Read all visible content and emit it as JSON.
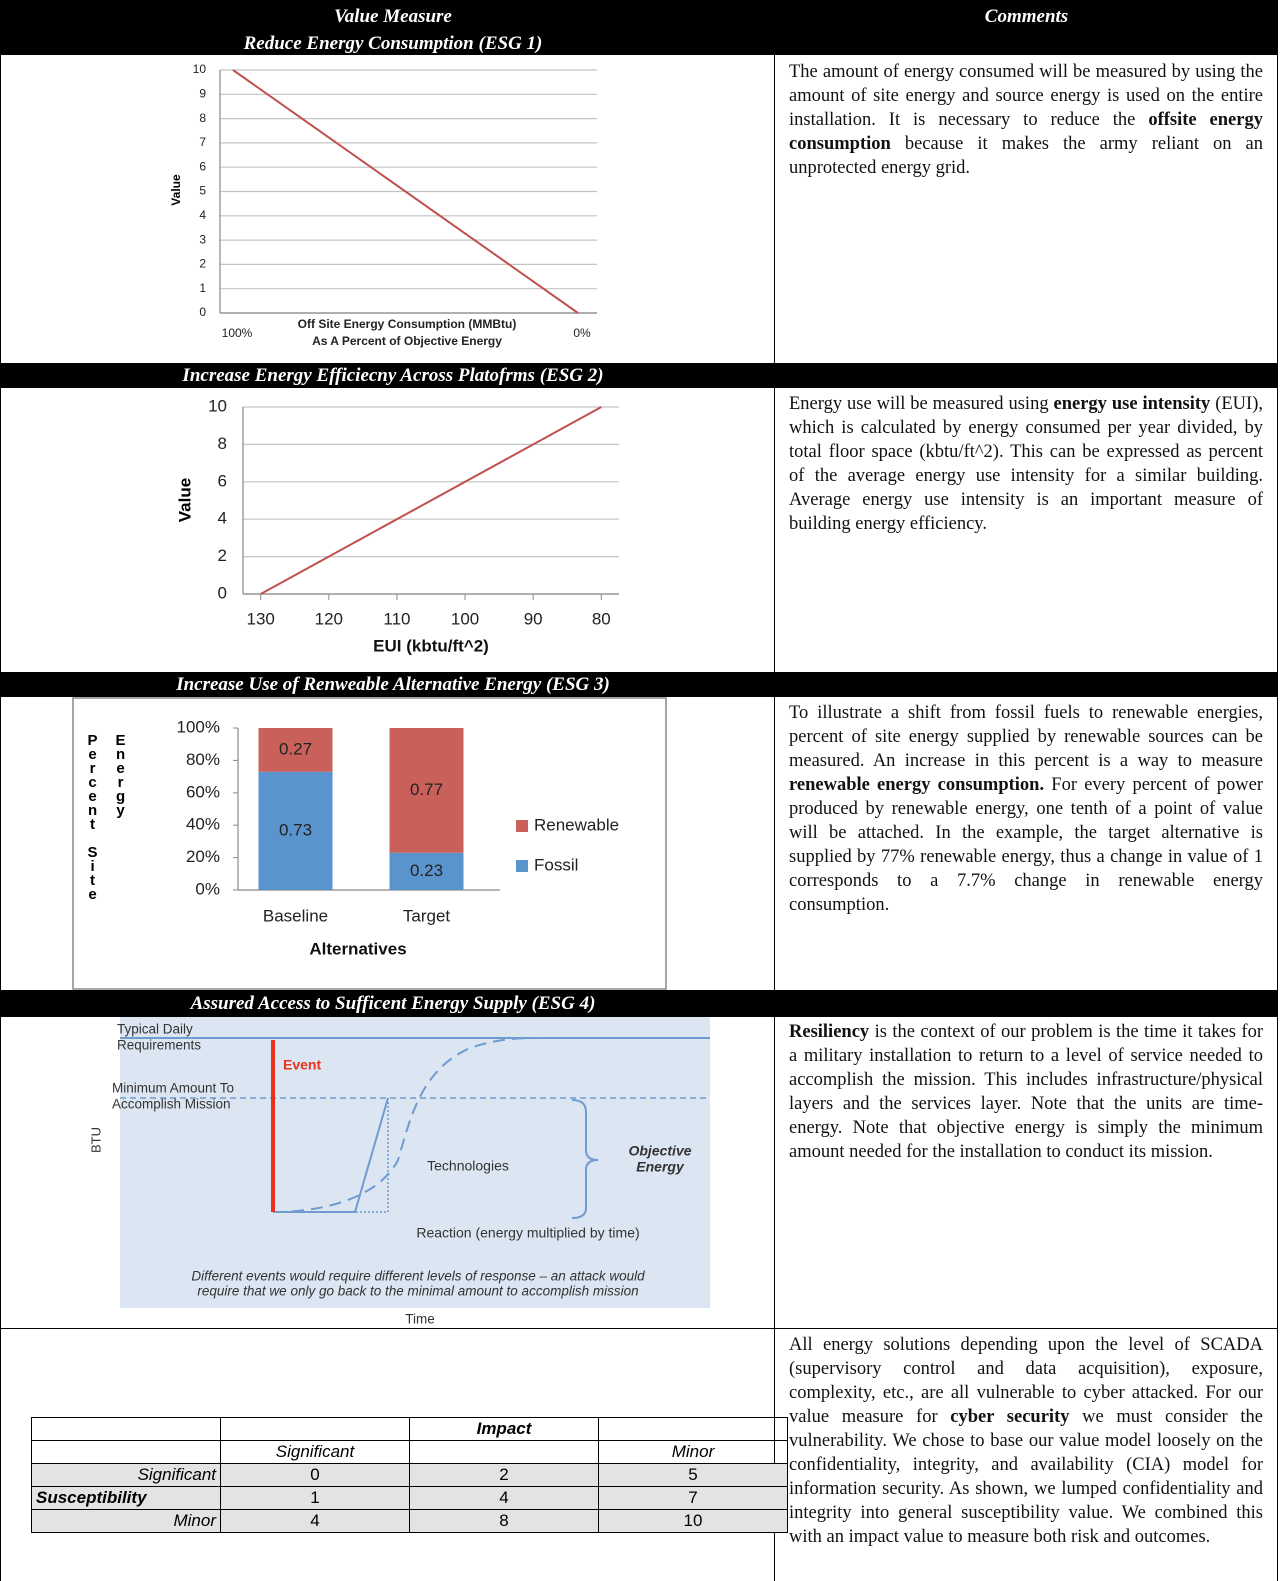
{
  "header": {
    "left": [
      "Value Measure",
      "Reduce Energy Consumption (ESG 1)"
    ],
    "right": "Comments"
  },
  "section_titles": [
    "Increase Energy Efficiecny Across Platofrms (ESG 2)",
    "Increase Use of Renweable Alternative Energy (ESG 3)",
    "Assured Access to Sufficent Energy Supply (ESG 4)"
  ],
  "comments": [
    [
      "The amount of energy consumed will be measured by using the amount of site energy and source energy is used on the entire installation. It is necessary to reduce the ",
      "offsite energy consumption",
      " because it makes the army reliant on an unprotected energy grid."
    ],
    [
      "Energy use will be measured using ",
      "energy use intensity",
      " (EUI), which is calculated by energy consumed per year divided, by total floor space (kbtu/ft^2). This can be expressed as percent of the average energy use intensity for a similar building. Average energy use intensity is an important measure of building energy efficiency."
    ],
    [
      "To illustrate a shift from fossil fuels to renewable energies, percent of site energy supplied by renewable sources can be measured. An increase in this percent is a way to measure ",
      "renewable energy consumption.",
      " For every percent of power produced by renewable energy, one tenth of a point of value will be attached. In the example, the target alternative is supplied by 77% renewable energy, thus a change in value of 1 corresponds to a 7.7% change in renewable energy consumption."
    ],
    [
      "Resiliency",
      " is the context of our problem is the time it takes for a military installation to return to a level of service needed to accomplish the mission.  This includes infrastructure/physical layers and the services layer.  Note that the units are time-energy.  Note that objective energy is simply the minimum amount needed for the installation to conduct its mission."
    ],
    [
      "All energy solutions depending upon the level of SCADA (supervisory control and data acquisition), exposure, complexity, etc., are all vulnerable to cyber attacked. For our value measure for ",
      "cyber security",
      " we must consider the vulnerability.  We chose to base our value model loosely on the confidentiality, integrity, and availability (CIA) model for information security. As shown, we lumped confidentiality and integrity into general susceptibility value. We combined this with an impact value to measure both risk and outcomes."
    ]
  ],
  "chart_data": [
    {
      "type": "line",
      "categories": [
        "100%",
        "0%"
      ],
      "values": [
        10,
        0
      ],
      "color": "#c0504d",
      "xlabel": [
        "Off Site Energy Consumption (MMBtu)",
        "As A Percent of Objective Energy"
      ],
      "ylabel": "Value",
      "ylim": [
        0,
        10
      ],
      "yticks": [
        0,
        1,
        2,
        3,
        4,
        5,
        6,
        7,
        8,
        9,
        10
      ],
      "grid": true
    },
    {
      "type": "xyline",
      "x": [
        130,
        80
      ],
      "values": [
        0,
        10
      ],
      "color": "#c0504d",
      "xlabel": "EUI (kbtu/ft^2)",
      "ylabel": "Value",
      "xlim": [
        132.6,
        77.4
      ],
      "xticks": [
        130,
        120,
        110,
        100,
        90,
        80
      ],
      "ylim": [
        0,
        10
      ],
      "yticks": [
        0,
        2,
        4,
        6,
        8,
        10
      ],
      "grid": true
    },
    {
      "type": "stacked_bar",
      "categories": [
        "Baseline",
        "Target"
      ],
      "series": [
        {
          "name": "Fossil",
          "color": "#5b93cc",
          "values": [
            0.73,
            0.23
          ]
        },
        {
          "name": "Renewable",
          "color": "#c9605a",
          "values": [
            0.27,
            0.77
          ]
        }
      ],
      "xlabel": "Alternatives",
      "ylabel": [
        "Percent Site",
        "Energy"
      ],
      "ylim": [
        0,
        1
      ],
      "yticks": [
        {
          "value": 0,
          "label": "0%"
        },
        {
          "value": 0.2,
          "label": "20%"
        },
        {
          "value": 0.4,
          "label": "40%"
        },
        {
          "value": 0.6,
          "label": "60%"
        },
        {
          "value": 0.8,
          "label": "80%"
        },
        {
          "value": 1,
          "label": "100%"
        }
      ],
      "grid": false,
      "legend": "right"
    }
  ],
  "diagram": {
    "typical": [
      "Typical Daily",
      "Requirements"
    ],
    "event": "Event",
    "minimum": [
      "Minimum Amount To",
      "Accomplish Mission"
    ],
    "yaxis": "BTU",
    "technologies": "Technologies",
    "objective": [
      "Objective",
      "Energy"
    ],
    "reaction": "Reaction (energy multiplied by time)",
    "caption": [
      "Different events would require different levels of response – an attack would",
      "require that we only go back to the minimal amount to accomplish mission"
    ],
    "xaxis": "Time"
  },
  "impact_table": {
    "column_header": "Impact",
    "columns": [
      "Significant",
      "Minor"
    ],
    "row_header": "Susceptibility",
    "rows": [
      {
        "label": "Significant",
        "values": [
          0,
          2,
          5
        ]
      },
      {
        "values": [
          1,
          4,
          7
        ]
      },
      {
        "label": "Minor",
        "values": [
          4,
          8,
          10
        ]
      }
    ]
  }
}
